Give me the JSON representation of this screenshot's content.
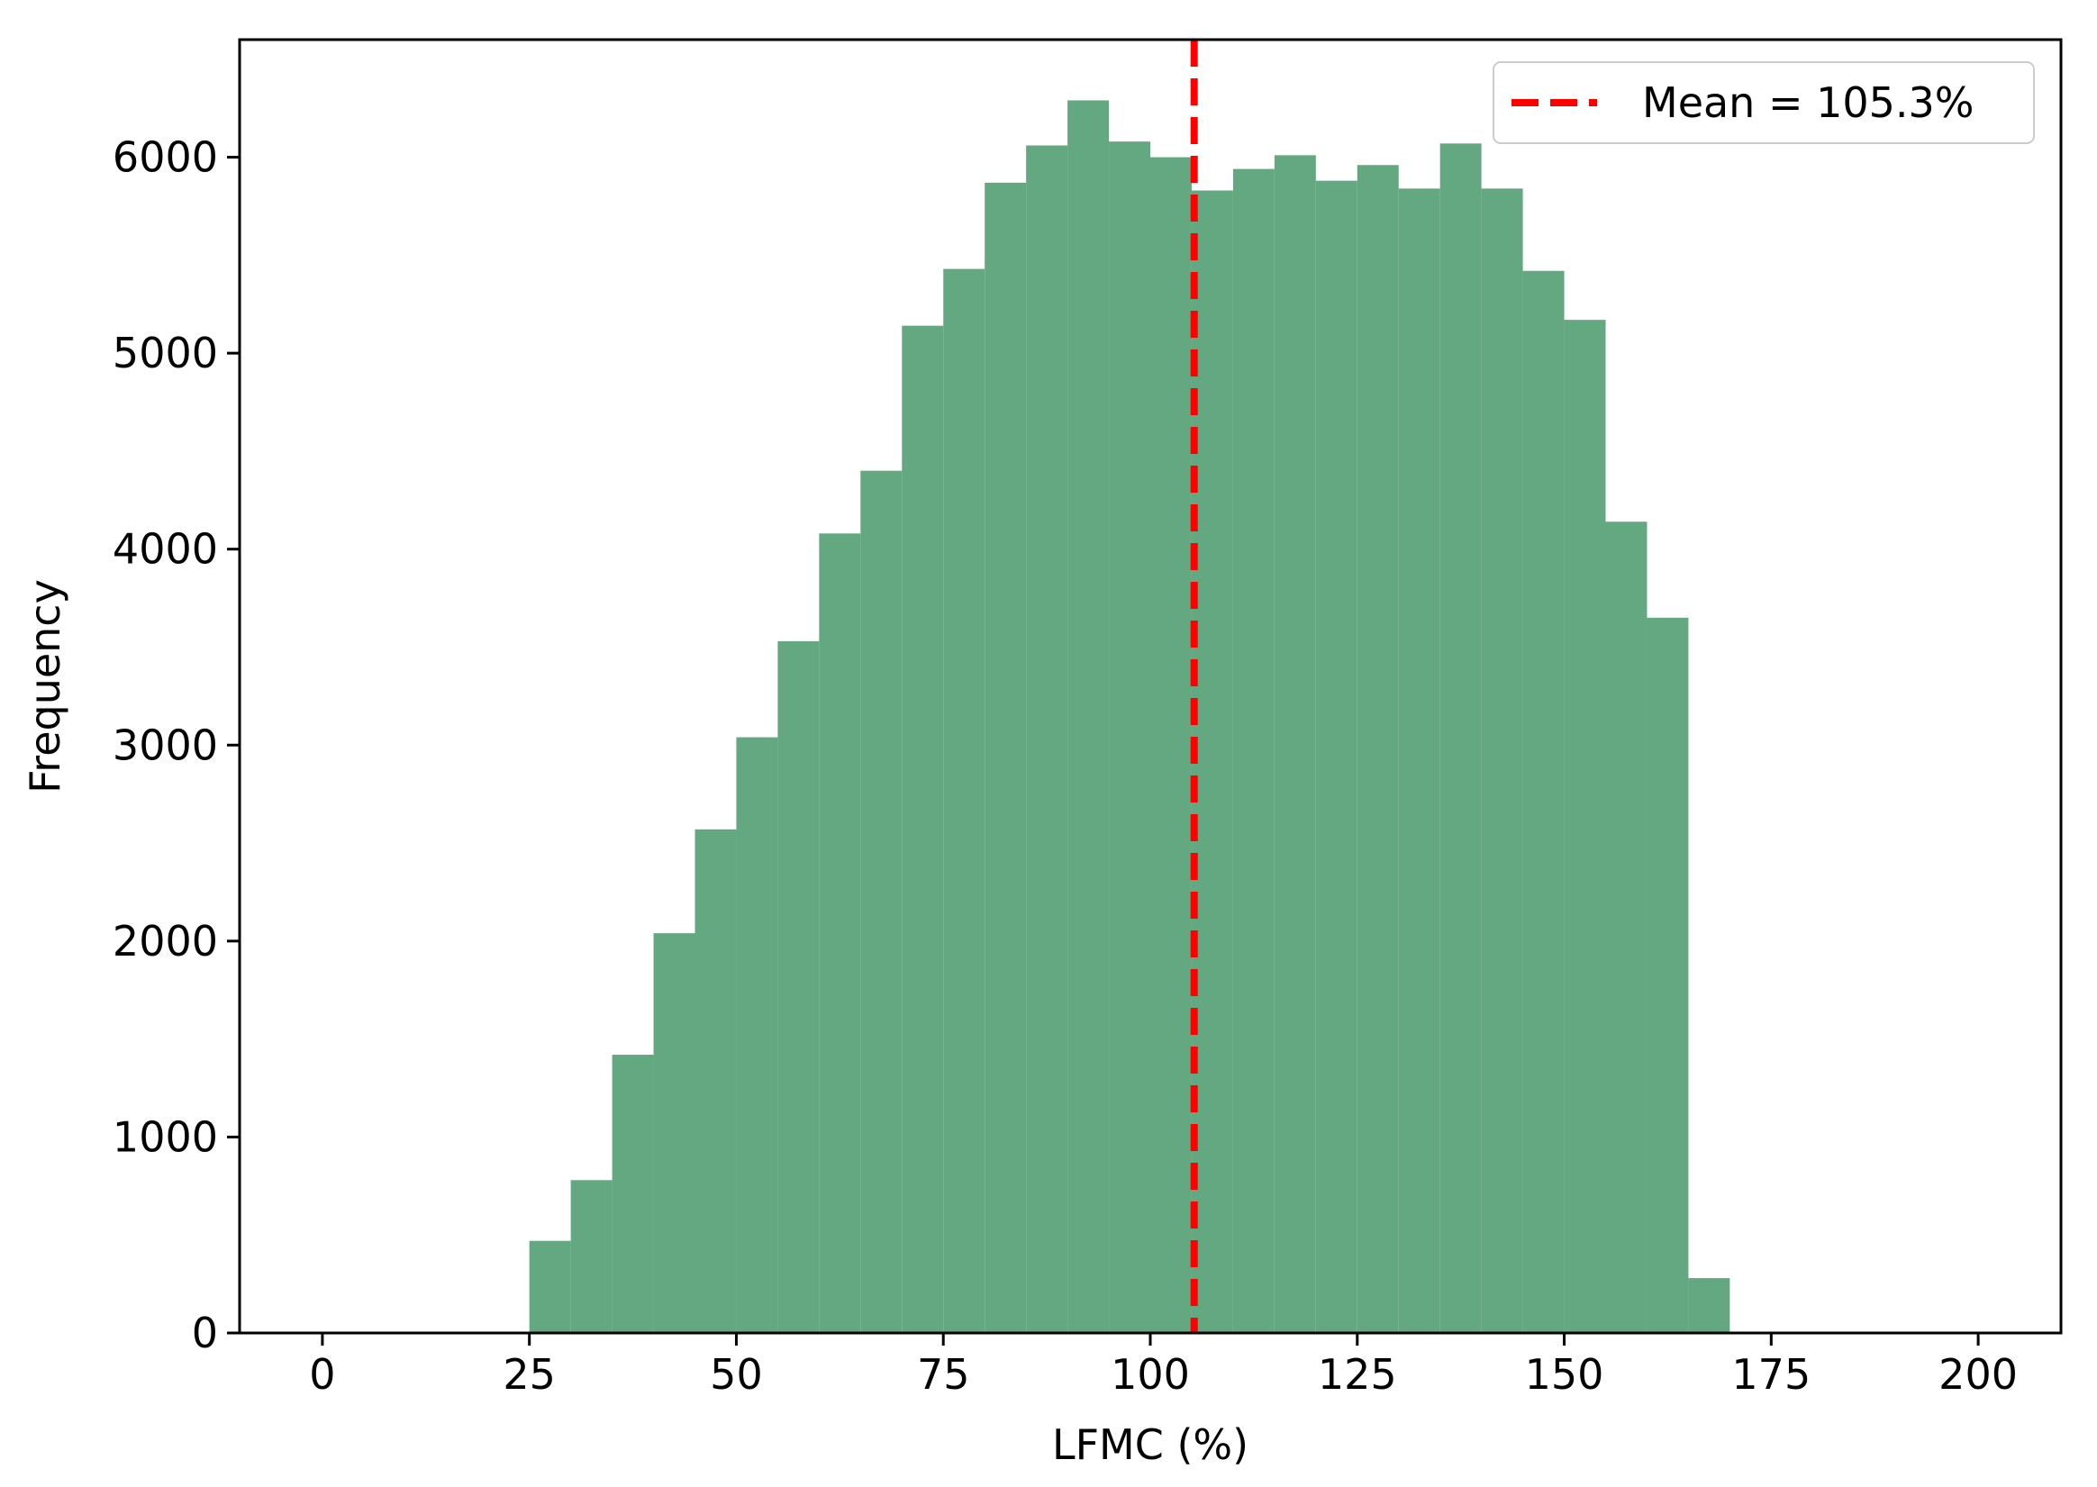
{
  "chart_data": {
    "type": "bar",
    "title": "",
    "xlabel": "LFMC (%)",
    "ylabel": "Frequency",
    "xlim": [
      -10,
      210
    ],
    "ylim": [
      0,
      6600
    ],
    "xticks": [
      0,
      25,
      50,
      75,
      100,
      125,
      150,
      175,
      200
    ],
    "yticks": [
      0,
      1000,
      2000,
      3000,
      4000,
      5000,
      6000
    ],
    "xtick_labels": [
      "0",
      "25",
      "50",
      "75",
      "100",
      "125",
      "150",
      "175",
      "200"
    ],
    "ytick_labels": [
      "0",
      "1000",
      "2000",
      "3000",
      "4000",
      "5000",
      "6000"
    ],
    "grid": false,
    "bin_edges": [
      25,
      30,
      35,
      40,
      45,
      50,
      55,
      60,
      65,
      70,
      75,
      80,
      85,
      90,
      95,
      100,
      105,
      110,
      115,
      120,
      125,
      130,
      135,
      140,
      145,
      150,
      155,
      160,
      165,
      170
    ],
    "values": [
      470,
      780,
      1420,
      2040,
      2570,
      3040,
      3530,
      4080,
      4400,
      5140,
      5430,
      5870,
      6060,
      6290,
      6080,
      6000,
      5830,
      5940,
      6010,
      5880,
      5960,
      5840,
      6070,
      5840,
      5420,
      5170,
      4140,
      3650,
      280
    ],
    "bar_color": "#64a882",
    "mean_line": {
      "x": 105.3,
      "color": "#ff0000",
      "style": "dashed"
    },
    "legend": {
      "position": "top-right",
      "entries": [
        "Mean = 105.3%"
      ]
    }
  }
}
